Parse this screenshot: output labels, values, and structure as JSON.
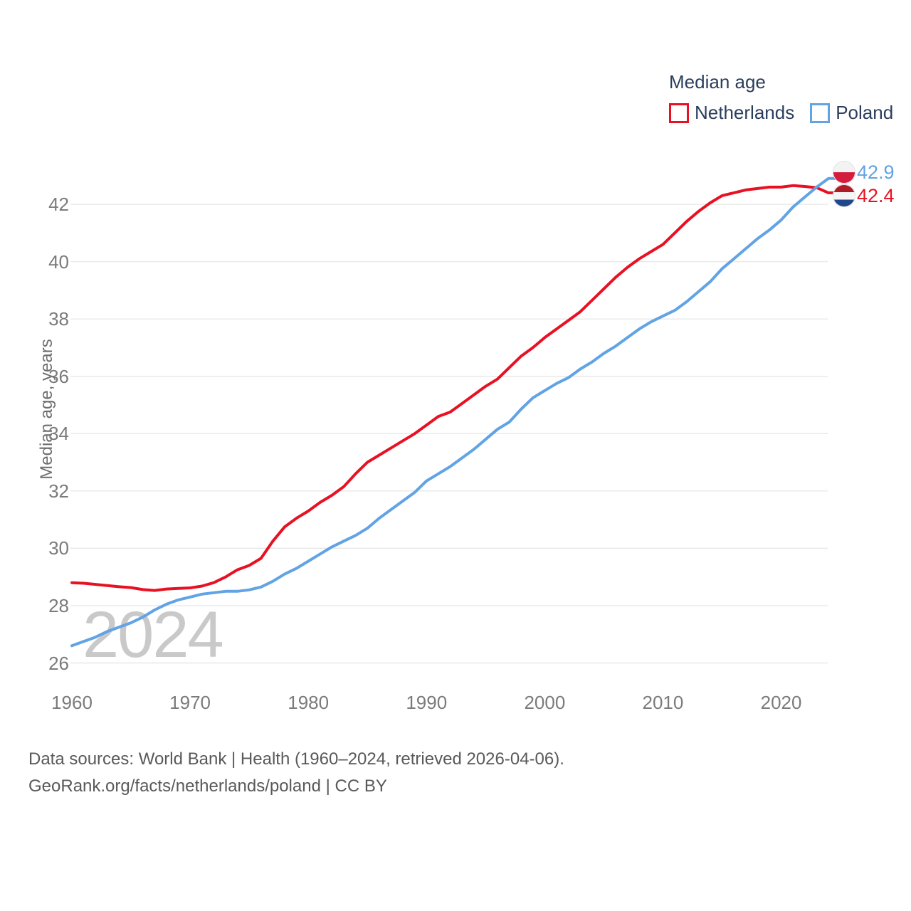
{
  "legend": {
    "title": "Median age",
    "items": [
      {
        "label": "Netherlands",
        "color": "#e81123"
      },
      {
        "label": "Poland",
        "color": "#61a3e4"
      }
    ]
  },
  "watermark": "2024",
  "y_axis": {
    "title": "Median age, years"
  },
  "end_labels": [
    {
      "series": "Poland",
      "value": "42.9",
      "flag_icon": "poland-flag",
      "color": "#61a3e4"
    },
    {
      "series": "Netherlands",
      "value": "42.4",
      "flag_icon": "netherlands-flag",
      "color": "#e81123"
    }
  ],
  "source": {
    "line1": "Data sources: World Bank | Health (1960–2024, retrieved 2026-04-06).",
    "line2": "GeoRank.org/facts/netherlands/poland | CC BY"
  },
  "chart_data": {
    "type": "line",
    "title": "Median age",
    "xlabel": "",
    "ylabel": "Median age, years",
    "ylim": [
      26,
      43.2
    ],
    "xlim": [
      1960,
      2024
    ],
    "grid": true,
    "legend_position": "top-right",
    "y_ticks": [
      26,
      28,
      30,
      32,
      34,
      36,
      38,
      40,
      42
    ],
    "x_ticks": [
      1960,
      1970,
      1980,
      1990,
      2000,
      2010,
      2020
    ],
    "x": [
      1960,
      1961,
      1962,
      1963,
      1964,
      1965,
      1966,
      1967,
      1968,
      1969,
      1970,
      1971,
      1972,
      1973,
      1974,
      1975,
      1976,
      1977,
      1978,
      1979,
      1980,
      1981,
      1982,
      1983,
      1984,
      1985,
      1986,
      1987,
      1988,
      1989,
      1990,
      1991,
      1992,
      1993,
      1994,
      1995,
      1996,
      1997,
      1998,
      1999,
      2000,
      2001,
      2002,
      2003,
      2004,
      2005,
      2006,
      2007,
      2008,
      2009,
      2010,
      2011,
      2012,
      2013,
      2014,
      2015,
      2016,
      2017,
      2018,
      2019,
      2020,
      2021,
      2022,
      2023,
      2024
    ],
    "series": [
      {
        "name": "Netherlands",
        "color": "#e81123",
        "final_value": 42.4,
        "values": [
          28.8,
          28.78,
          28.74,
          28.7,
          28.66,
          28.63,
          28.56,
          28.53,
          28.58,
          28.6,
          28.62,
          28.68,
          28.8,
          29.0,
          29.25,
          29.4,
          29.65,
          30.25,
          30.75,
          31.05,
          31.3,
          31.6,
          31.85,
          32.15,
          32.6,
          33.0,
          33.25,
          33.5,
          33.75,
          34.0,
          34.3,
          34.6,
          34.75,
          35.05,
          35.35,
          35.65,
          35.9,
          36.3,
          36.7,
          37.0,
          37.35,
          37.65,
          37.95,
          38.25,
          38.65,
          39.05,
          39.45,
          39.8,
          40.1,
          40.35,
          40.6,
          41.0,
          41.4,
          41.75,
          42.05,
          42.3,
          42.4,
          42.5,
          42.55,
          42.6,
          42.6,
          42.65,
          42.62,
          42.58,
          42.4
        ]
      },
      {
        "name": "Poland",
        "color": "#61a3e4",
        "final_value": 42.9,
        "values": [
          26.6,
          26.75,
          26.9,
          27.1,
          27.25,
          27.4,
          27.6,
          27.85,
          28.05,
          28.2,
          28.3,
          28.4,
          28.45,
          28.5,
          28.5,
          28.55,
          28.65,
          28.85,
          29.1,
          29.3,
          29.55,
          29.8,
          30.05,
          30.25,
          30.45,
          30.7,
          31.05,
          31.35,
          31.65,
          31.95,
          32.35,
          32.6,
          32.85,
          33.15,
          33.45,
          33.8,
          34.15,
          34.4,
          34.85,
          35.25,
          35.5,
          35.75,
          35.95,
          36.25,
          36.5,
          36.8,
          37.05,
          37.35,
          37.65,
          37.9,
          38.1,
          38.3,
          38.6,
          38.95,
          39.3,
          39.75,
          40.1,
          40.45,
          40.8,
          41.1,
          41.45,
          41.9,
          42.25,
          42.6,
          42.9
        ]
      }
    ]
  }
}
